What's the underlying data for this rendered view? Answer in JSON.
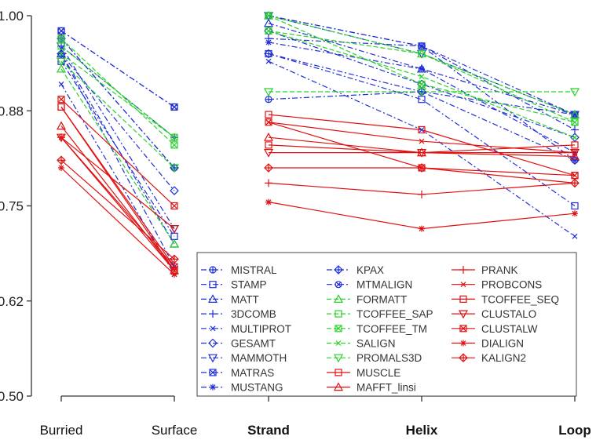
{
  "colors": {
    "blue": "#1f2fd6",
    "green": "#2ad12a",
    "red": "#e01010",
    "axis": "#333333"
  },
  "chart_data": {
    "type": "line",
    "ylim": [
      0.5,
      1.0
    ],
    "yticks": [
      "0.50",
      "0.62",
      "0.75",
      "0.88",
      "1.00"
    ],
    "ytick_values": [
      0.5,
      0.625,
      0.75,
      0.875,
      1.0
    ],
    "panels": [
      {
        "x": [
          "Burried",
          "Surface"
        ],
        "bold_labels": false
      },
      {
        "x": [
          "Strand",
          "Helix",
          "Loop"
        ],
        "bold_labels": true
      }
    ],
    "legend_columns": [
      [
        "MISTRAL",
        "STAMP",
        "MATT",
        "3DCOMB",
        "MULTIPROT",
        "GESAMT",
        "MAMMOTH",
        "MATRAS",
        "MUSTANG"
      ],
      [
        "KPAX",
        "MTMALIGN",
        "FORMATT",
        "TCOFFEE_SAP",
        "TCOFFEE_TM",
        "SALIGN",
        "PROMALS3D",
        "MUSCLE",
        "MAFFT_linsi"
      ],
      [
        "PRANK",
        "PROBCONS",
        "TCOFFEE_SEQ",
        "CLUSTALO",
        "CLUSTALW",
        "DIALIGN",
        "KALIGN2"
      ]
    ],
    "series": [
      {
        "name": "MISTRAL",
        "color": "blue",
        "dash": "dashdot",
        "marker": "circle-plus",
        "left": [
          0.97,
          0.8
        ],
        "right": [
          0.89,
          0.9,
          0.87
        ]
      },
      {
        "name": "STAMP",
        "color": "blue",
        "dash": "dashdot",
        "marker": "square",
        "left": [
          0.94,
          0.71
        ],
        "right": [
          0.95,
          0.89,
          0.75
        ]
      },
      {
        "name": "MATT",
        "color": "blue",
        "dash": "dashdot",
        "marker": "triangle-up",
        "left": [
          0.95,
          0.7
        ],
        "right": [
          0.99,
          0.93,
          0.87
        ]
      },
      {
        "name": "3DCOMB",
        "color": "blue",
        "dash": "dashdot",
        "marker": "plus",
        "left": [
          0.96,
          0.84
        ],
        "right": [
          0.97,
          0.96,
          0.85
        ]
      },
      {
        "name": "MULTIPROT",
        "color": "blue",
        "dash": "dashdot",
        "marker": "x",
        "left": [
          0.91,
          0.66
        ],
        "right": [
          0.94,
          0.85,
          0.71
        ]
      },
      {
        "name": "GESAMT",
        "color": "blue",
        "dash": "dashdot",
        "marker": "diamond",
        "left": [
          0.95,
          0.77
        ],
        "right": [
          0.98,
          0.91,
          0.84
        ]
      },
      {
        "name": "MAMMOTH",
        "color": "blue",
        "dash": "dashdot",
        "marker": "triangle-down",
        "left": [
          0.96,
          0.72
        ],
        "right": [
          1.0,
          0.95,
          0.87
        ]
      },
      {
        "name": "MATRAS",
        "color": "blue",
        "dash": "dashdot",
        "marker": "square-x",
        "left": [
          0.98,
          0.88
        ],
        "right": [
          1.0,
          0.96,
          0.87
        ]
      },
      {
        "name": "MUSTANG",
        "color": "blue",
        "dash": "dashdot",
        "marker": "asterisk",
        "left": [
          0.95,
          0.67
        ],
        "right": [
          0.965,
          0.93,
          0.82
        ]
      },
      {
        "name": "KPAX",
        "color": "blue",
        "dash": "dashdot",
        "marker": "circle-plus-diamond",
        "left": [
          0.97,
          0.8
        ],
        "right": [
          0.95,
          0.9,
          0.81
        ]
      },
      {
        "name": "MTMALIGN",
        "color": "blue",
        "dash": "dashdot",
        "marker": "circle-x",
        "left": [
          0.98,
          0.88
        ],
        "right": [
          1.0,
          0.96,
          0.81
        ]
      },
      {
        "name": "FORMATT",
        "color": "green",
        "dash": "dashed",
        "marker": "triangle-up",
        "left": [
          0.93,
          0.7
        ],
        "right": [
          1.0,
          0.95,
          0.87
        ]
      },
      {
        "name": "TCOFFEE_SAP",
        "color": "green",
        "dash": "dashed",
        "marker": "square",
        "left": [
          0.96,
          0.84
        ],
        "right": [
          0.98,
          0.95,
          0.86
        ]
      },
      {
        "name": "TCOFFEE_TM",
        "color": "green",
        "dash": "dashed",
        "marker": "square-x",
        "left": [
          0.97,
          0.83
        ],
        "right": [
          1.0,
          0.91,
          0.86
        ]
      },
      {
        "name": "SALIGN",
        "color": "green",
        "dash": "dashed",
        "marker": "x",
        "left": [
          0.95,
          0.84
        ],
        "right": [
          0.98,
          0.92,
          0.84
        ]
      },
      {
        "name": "PROMALS3D",
        "color": "green",
        "dash": "dashed",
        "marker": "triangle-down",
        "left": [
          0.94,
          0.8
        ],
        "right": [
          0.9,
          0.9,
          0.9
        ]
      },
      {
        "name": "MUSCLE",
        "color": "red",
        "dash": "solid",
        "marker": "square",
        "left": [
          0.88,
          0.67
        ],
        "right": [
          0.87,
          0.85,
          0.79
        ]
      },
      {
        "name": "MAFFT_linsi",
        "color": "red",
        "dash": "solid",
        "marker": "triangle-up",
        "left": [
          0.855,
          0.665
        ],
        "right": [
          0.84,
          0.82,
          0.815
        ]
      },
      {
        "name": "PRANK",
        "color": "red",
        "dash": "solid",
        "marker": "plus",
        "left": [
          0.84,
          0.67
        ],
        "right": [
          0.78,
          0.765,
          0.78
        ]
      },
      {
        "name": "PROBCONS",
        "color": "red",
        "dash": "solid",
        "marker": "x",
        "left": [
          0.84,
          0.665
        ],
        "right": [
          0.86,
          0.835,
          0.82
        ]
      },
      {
        "name": "TCOFFEE_SEQ",
        "color": "red",
        "dash": "solid",
        "marker": "square",
        "left": [
          0.88,
          0.665
        ],
        "right": [
          0.83,
          0.82,
          0.83
        ]
      },
      {
        "name": "CLUSTALO",
        "color": "red",
        "dash": "solid",
        "marker": "triangle-down",
        "left": [
          0.84,
          0.72
        ],
        "right": [
          0.82,
          0.82,
          0.82
        ]
      },
      {
        "name": "CLUSTALW",
        "color": "red",
        "dash": "solid",
        "marker": "square-x",
        "left": [
          0.89,
          0.75
        ],
        "right": [
          0.86,
          0.8,
          0.79
        ]
      },
      {
        "name": "DIALIGN",
        "color": "red",
        "dash": "solid",
        "marker": "asterisk",
        "left": [
          0.8,
          0.66
        ],
        "right": [
          0.755,
          0.72,
          0.74
        ]
      },
      {
        "name": "KALIGN2",
        "color": "red",
        "dash": "solid",
        "marker": "diamond-plus",
        "left": [
          0.81,
          0.68
        ],
        "right": [
          0.8,
          0.8,
          0.78
        ]
      }
    ]
  }
}
